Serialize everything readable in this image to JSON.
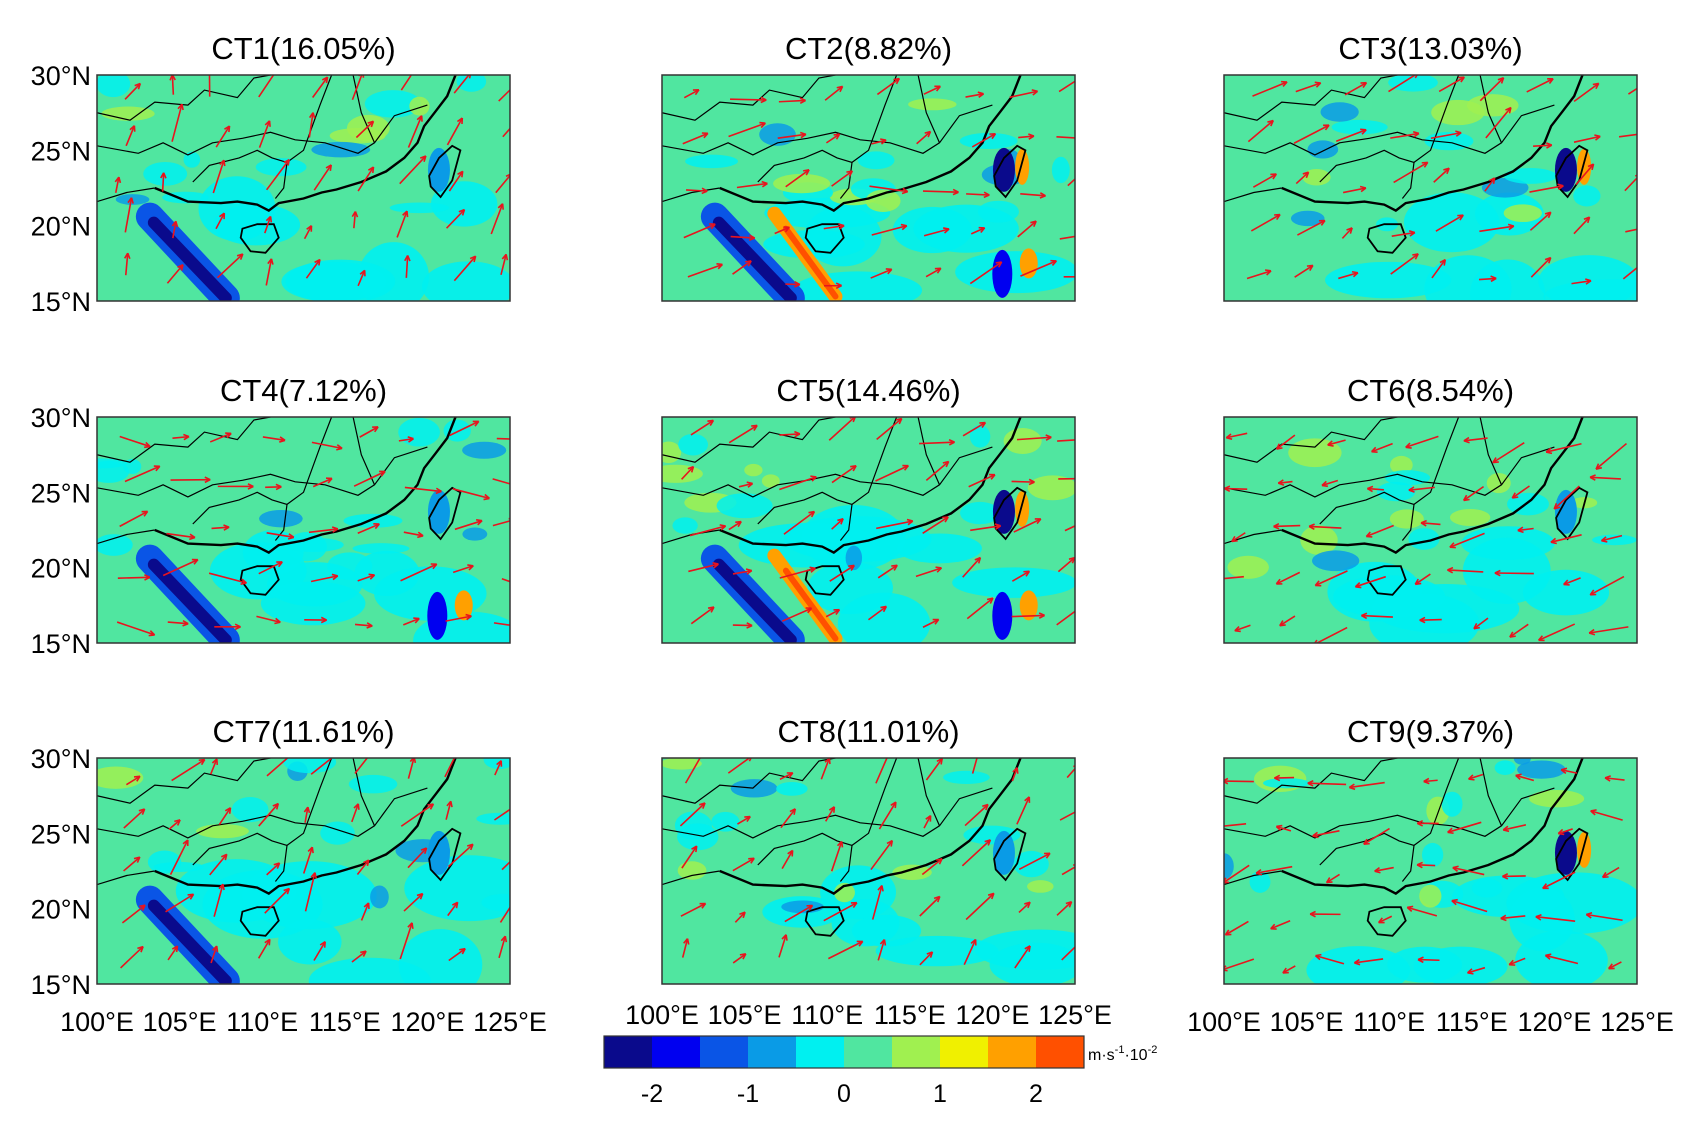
{
  "chart_data": {
    "type": "heatmap",
    "description_units": "vertical velocity anomaly contours with wind vectors",
    "panels": [
      {
        "title": "CT1(16.05%)"
      },
      {
        "title": "CT2(8.82%)"
      },
      {
        "title": "CT3(13.03%)"
      },
      {
        "title": "CT4(7.12%)"
      },
      {
        "title": "CT5(14.46%)"
      },
      {
        "title": "CT6(8.54%)"
      },
      {
        "title": "CT7(11.61%)"
      },
      {
        "title": "CT8(11.01%)"
      },
      {
        "title": "CT9(9.37%)"
      }
    ],
    "x_ticks": [
      "100°E",
      "105°E",
      "110°E",
      "115°E",
      "120°E",
      "125°E"
    ],
    "y_ticks": [
      "30°N",
      "25°N",
      "20°N",
      "15°N"
    ],
    "xlim": [
      100,
      125
    ],
    "ylim": [
      15,
      30
    ],
    "colorbar": {
      "ticks": [
        "-2",
        "-1",
        "0",
        "1",
        "2"
      ],
      "range": [
        -2.5,
        2.5
      ],
      "levels": 10,
      "unit_main": "m·s",
      "unit_exp1": "-1",
      "unit_mid": "·10",
      "unit_exp2": "-2",
      "colors": [
        "#0a0a8c",
        "#0000f0",
        "#0a55e6",
        "#0a9be6",
        "#00f0f0",
        "#50e6a0",
        "#a0f050",
        "#f0f000",
        "#ffa000",
        "#ff5000"
      ]
    }
  }
}
